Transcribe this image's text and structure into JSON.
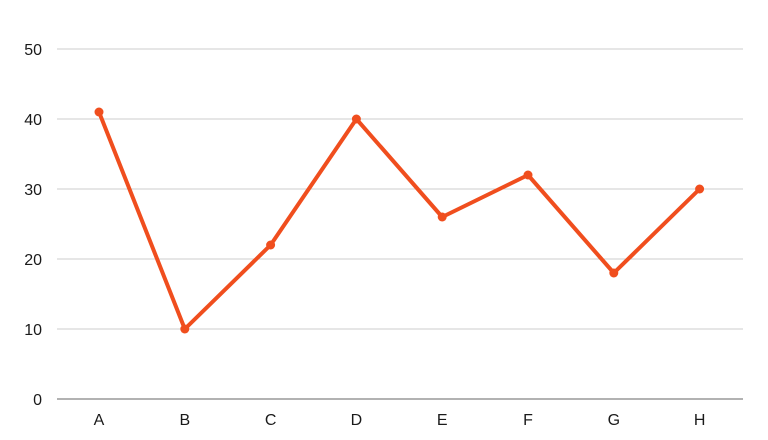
{
  "chart_data": {
    "type": "line",
    "categories": [
      "A",
      "B",
      "C",
      "D",
      "E",
      "F",
      "G",
      "H"
    ],
    "series": [
      {
        "values": [
          41,
          10,
          22,
          40,
          26,
          32,
          18,
          30
        ]
      }
    ],
    "ylim": [
      0,
      50
    ],
    "yticks": [
      0,
      10,
      20,
      30,
      40,
      50
    ],
    "grid": true,
    "colors": {
      "line": "#f04e1e",
      "grid": "#cccccc",
      "axis": "#999999"
    }
  }
}
